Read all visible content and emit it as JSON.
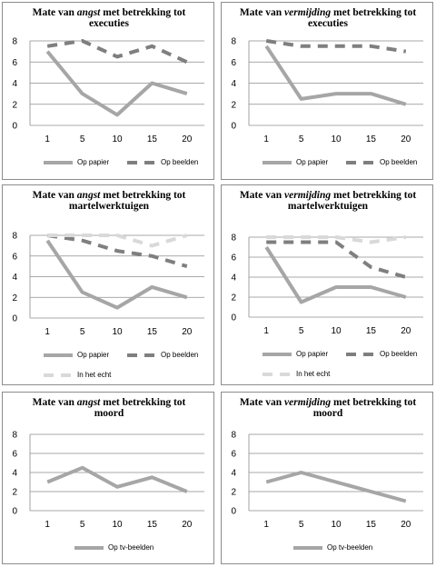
{
  "chart_data": [
    {
      "type": "line",
      "title": {
        "pre": "Mate van ",
        "em": "angst",
        "post": " met betrekking tot",
        "line2": "executies"
      },
      "categories": [
        "1",
        "5",
        "10",
        "15",
        "20"
      ],
      "ylim": [
        0,
        8
      ],
      "yticks": [
        "0",
        "2",
        "4",
        "6",
        "8"
      ],
      "grid": true,
      "legend": "bottom",
      "series": [
        {
          "name": "Op papier",
          "values": [
            7,
            3,
            1,
            4,
            3
          ],
          "color": "#a6a6a6",
          "dash": "solid"
        },
        {
          "name": "Op beelden",
          "values": [
            7.5,
            8,
            6.5,
            7.5,
            6
          ],
          "color": "#7f7f7f",
          "dash": "dash"
        }
      ]
    },
    {
      "type": "line",
      "title": {
        "pre": "Mate van ",
        "em": "vermijding",
        "post": " met betrekking tot",
        "line2": "executies"
      },
      "categories": [
        "1",
        "5",
        "10",
        "15",
        "20"
      ],
      "ylim": [
        0,
        8
      ],
      "yticks": [
        "0",
        "2",
        "4",
        "6",
        "8"
      ],
      "grid": true,
      "legend": "bottom",
      "series": [
        {
          "name": "Op papier",
          "values": [
            7.5,
            2.5,
            3,
            3,
            2
          ],
          "color": "#a6a6a6",
          "dash": "solid"
        },
        {
          "name": "Op beelden",
          "values": [
            8,
            7.5,
            7.5,
            7.5,
            7
          ],
          "color": "#7f7f7f",
          "dash": "dash"
        }
      ]
    },
    {
      "type": "line",
      "title": {
        "pre": "Mate van ",
        "em": "angst",
        "post": " met betrekking tot",
        "line2": "martelwerktuigen"
      },
      "categories": [
        "1",
        "5",
        "10",
        "15",
        "20"
      ],
      "ylim": [
        0,
        8
      ],
      "yticks": [
        "0",
        "2",
        "4",
        "6",
        "8"
      ],
      "grid": true,
      "legend": "bottom",
      "series": [
        {
          "name": "Op papier",
          "values": [
            7.5,
            2.5,
            1,
            3,
            2
          ],
          "color": "#a6a6a6",
          "dash": "solid"
        },
        {
          "name": "Op beelden",
          "values": [
            8,
            7.5,
            6.5,
            6,
            5
          ],
          "color": "#7f7f7f",
          "dash": "dash"
        },
        {
          "name": "In het echt",
          "values": [
            8,
            8,
            8,
            7,
            8
          ],
          "color": "#d9d9d9",
          "dash": "dash"
        }
      ]
    },
    {
      "type": "line",
      "title": {
        "pre": "Mate van ",
        "em": "vermijding",
        "post": " met betrekking tot",
        "line2": "martelwerktuigen"
      },
      "categories": [
        "1",
        "5",
        "10",
        "15",
        "20"
      ],
      "ylim": [
        0,
        8
      ],
      "yticks": [
        "0",
        "2",
        "4",
        "6",
        "8"
      ],
      "grid": true,
      "legend": "bottom",
      "series": [
        {
          "name": "Op papier",
          "values": [
            7,
            1.5,
            3,
            3,
            2
          ],
          "color": "#a6a6a6",
          "dash": "solid"
        },
        {
          "name": "Op beelden",
          "values": [
            7.5,
            7.5,
            7.5,
            5,
            4
          ],
          "color": "#7f7f7f",
          "dash": "dash"
        },
        {
          "name": "In het echt",
          "values": [
            8,
            8,
            8,
            7.5,
            8
          ],
          "color": "#d9d9d9",
          "dash": "dash"
        }
      ]
    },
    {
      "type": "line",
      "title": {
        "pre": "Mate van ",
        "em": "angst",
        "post": " met betrekking tot",
        "line2": "moord"
      },
      "categories": [
        "1",
        "5",
        "10",
        "15",
        "20"
      ],
      "ylim": [
        0,
        8
      ],
      "yticks": [
        "0",
        "2",
        "4",
        "6",
        "8"
      ],
      "grid": true,
      "legend": "bottom",
      "series": [
        {
          "name": "Op tv-beelden",
          "values": [
            3,
            4.5,
            2.5,
            3.5,
            2
          ],
          "color": "#a6a6a6",
          "dash": "solid"
        }
      ]
    },
    {
      "type": "line",
      "title": {
        "pre": "Mate van ",
        "em": "vermijding",
        "post": " met betrekking tot",
        "line2": "moord"
      },
      "categories": [
        "1",
        "5",
        "10",
        "15",
        "20"
      ],
      "ylim": [
        0,
        8
      ],
      "yticks": [
        "0",
        "2",
        "4",
        "6",
        "8"
      ],
      "grid": true,
      "legend": "bottom",
      "series": [
        {
          "name": "Op tv-beelden",
          "values": [
            3,
            4,
            3,
            2,
            1
          ],
          "color": "#a6a6a6",
          "dash": "solid"
        }
      ]
    }
  ]
}
